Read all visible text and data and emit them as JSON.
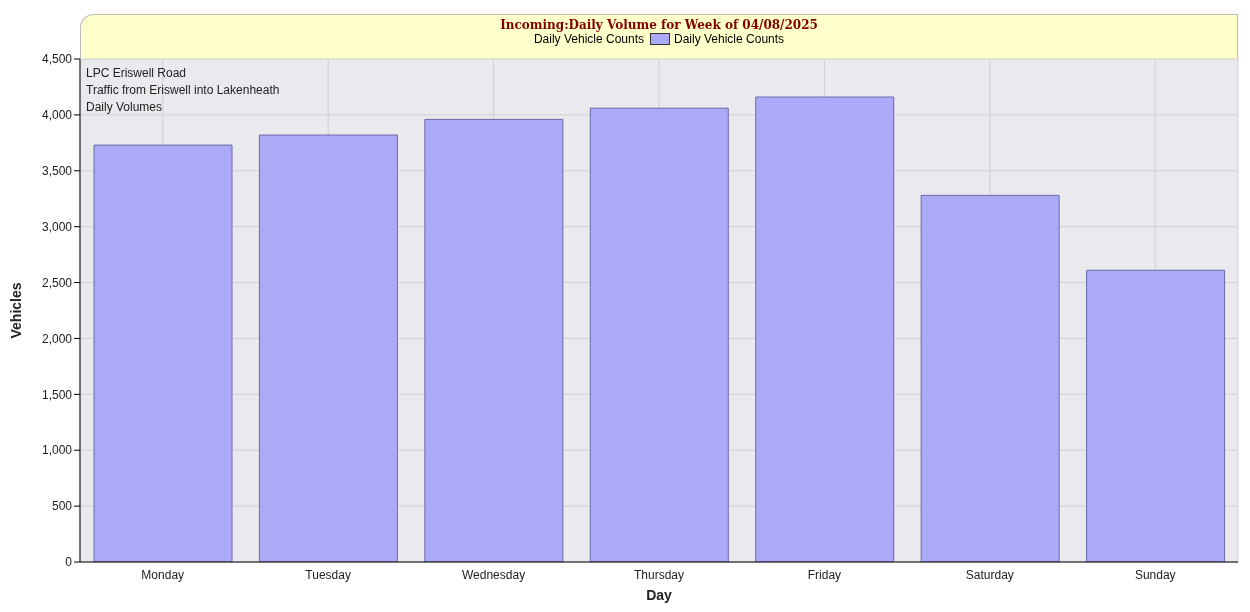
{
  "chart_data": {
    "type": "bar",
    "title": "Incoming:Daily Volume for Week of 04/08/2025",
    "legend_title": "Daily Vehicle Counts",
    "xlabel": "Day",
    "ylabel": "Vehicles",
    "categories": [
      "Monday",
      "Tuesday",
      "Wednesday",
      "Thursday",
      "Friday",
      "Saturday",
      "Sunday"
    ],
    "series": [
      {
        "name": "Daily Vehicle Counts",
        "color": "#aaaaf8",
        "values": [
          3730,
          3820,
          3960,
          4060,
          4160,
          3280,
          2610
        ]
      }
    ],
    "ylim": [
      0,
      4500
    ],
    "yticks": [
      {
        "value": 0,
        "label": "0"
      },
      {
        "value": 500,
        "label": "500"
      },
      {
        "value": 1000,
        "label": "1,000"
      },
      {
        "value": 1500,
        "label": "1,500"
      },
      {
        "value": 2000,
        "label": "2,000"
      },
      {
        "value": 2500,
        "label": "2,500"
      },
      {
        "value": 3000,
        "label": "3,000"
      },
      {
        "value": 3500,
        "label": "3,500"
      },
      {
        "value": 4000,
        "label": "4,000"
      },
      {
        "value": 4500,
        "label": "4,500"
      }
    ],
    "annotations": [
      "LPC Eriswell Road",
      "Traffic from Eriswell into Lakenheath",
      "Daily Volumes"
    ],
    "grid": true,
    "legend": "top"
  }
}
